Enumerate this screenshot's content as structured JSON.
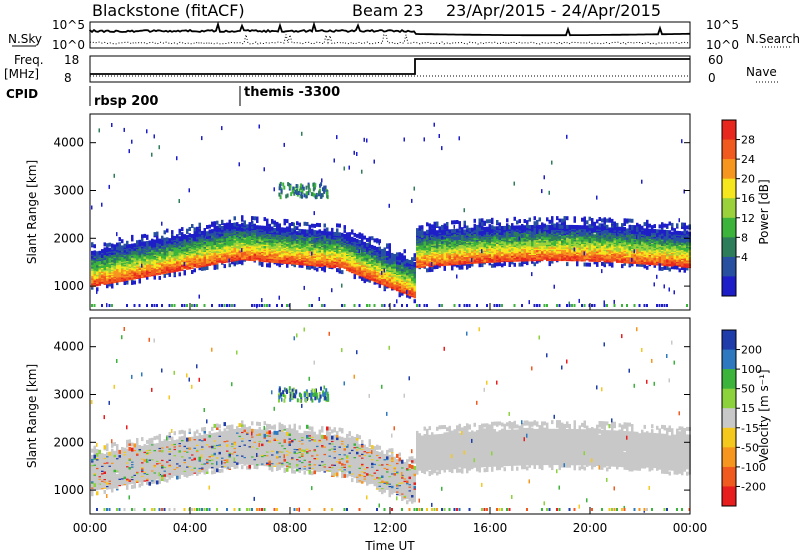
{
  "header": {
    "station": "Blackstone (fitACF)",
    "beam": "Beam 23",
    "date_range": "23/Apr/2015 - 24/Apr/2015"
  },
  "top_panels": {
    "nsky_label": "N.Sky",
    "nsearch_label": "N.Search",
    "nsky_ticks": [
      "10^5",
      "10^0"
    ],
    "nsearch_ticks": [
      "10^5",
      "10^0"
    ],
    "freq_label": "Freq.",
    "freq_unit": "[MHz]",
    "freq_ticks": [
      "18",
      "8"
    ],
    "nave_label": "Nave",
    "nave_ticks": [
      "60",
      "0"
    ],
    "cpid_label": "CPID",
    "cpid_entries": [
      {
        "label": "rbsp 200",
        "start_hour": 0
      },
      {
        "label": "themis -3300",
        "start_hour": 6
      }
    ]
  },
  "chart_data": [
    {
      "type": "heatmap",
      "title": "",
      "xlabel": "",
      "ylabel": "Slant Range [km]",
      "xlim_hours": [
        0,
        24
      ],
      "ylim": [
        500,
        4600
      ],
      "yticks": [
        1000,
        2000,
        3000,
        4000
      ],
      "colorbar": {
        "label": "Power [dB]",
        "ticks": [
          "28",
          "24",
          "20",
          "16",
          "12",
          "8",
          "4"
        ],
        "colors": [
          "#e8281e",
          "#f05a1e",
          "#f7961e",
          "#f5e61e",
          "#9bd23c",
          "#3cb43c",
          "#2d7d5a",
          "#2850a0",
          "#1e1ec8"
        ]
      },
      "scatter_band": {
        "center_km": [
          [
            0,
            1250
          ],
          [
            2,
            1450
          ],
          [
            4,
            1650
          ],
          [
            6,
            1800
          ],
          [
            8,
            1650
          ],
          [
            10,
            1600
          ],
          [
            12,
            1000
          ],
          [
            13,
            1000
          ],
          [
            13,
            1650
          ],
          [
            16,
            1800
          ],
          [
            20,
            1700
          ],
          [
            24,
            1600
          ]
        ],
        "patch_3000km_hours": [
          7.5,
          9.5
        ]
      }
    },
    {
      "type": "heatmap",
      "title": "",
      "xlabel": "Time UT",
      "ylabel": "Slant Range [km]",
      "xlim_hours": [
        0,
        24
      ],
      "ylim": [
        500,
        4600
      ],
      "yticks": [
        1000,
        2000,
        3000,
        4000
      ],
      "xticks": [
        "00:00",
        "04:00",
        "08:00",
        "12:00",
        "16:00",
        "20:00",
        "00:00"
      ],
      "colorbar": {
        "label": "Velocity [m s⁻¹]",
        "ticks": [
          "200",
          "100",
          "50",
          "15",
          "-15",
          "-50",
          "-100",
          "-200"
        ],
        "colors": [
          "#1e3caa",
          "#2d78be",
          "#3cb43c",
          "#8cd23c",
          "#c8c8c8",
          "#f5c81e",
          "#f7961e",
          "#f05a1e",
          "#e81e1e"
        ]
      }
    }
  ]
}
